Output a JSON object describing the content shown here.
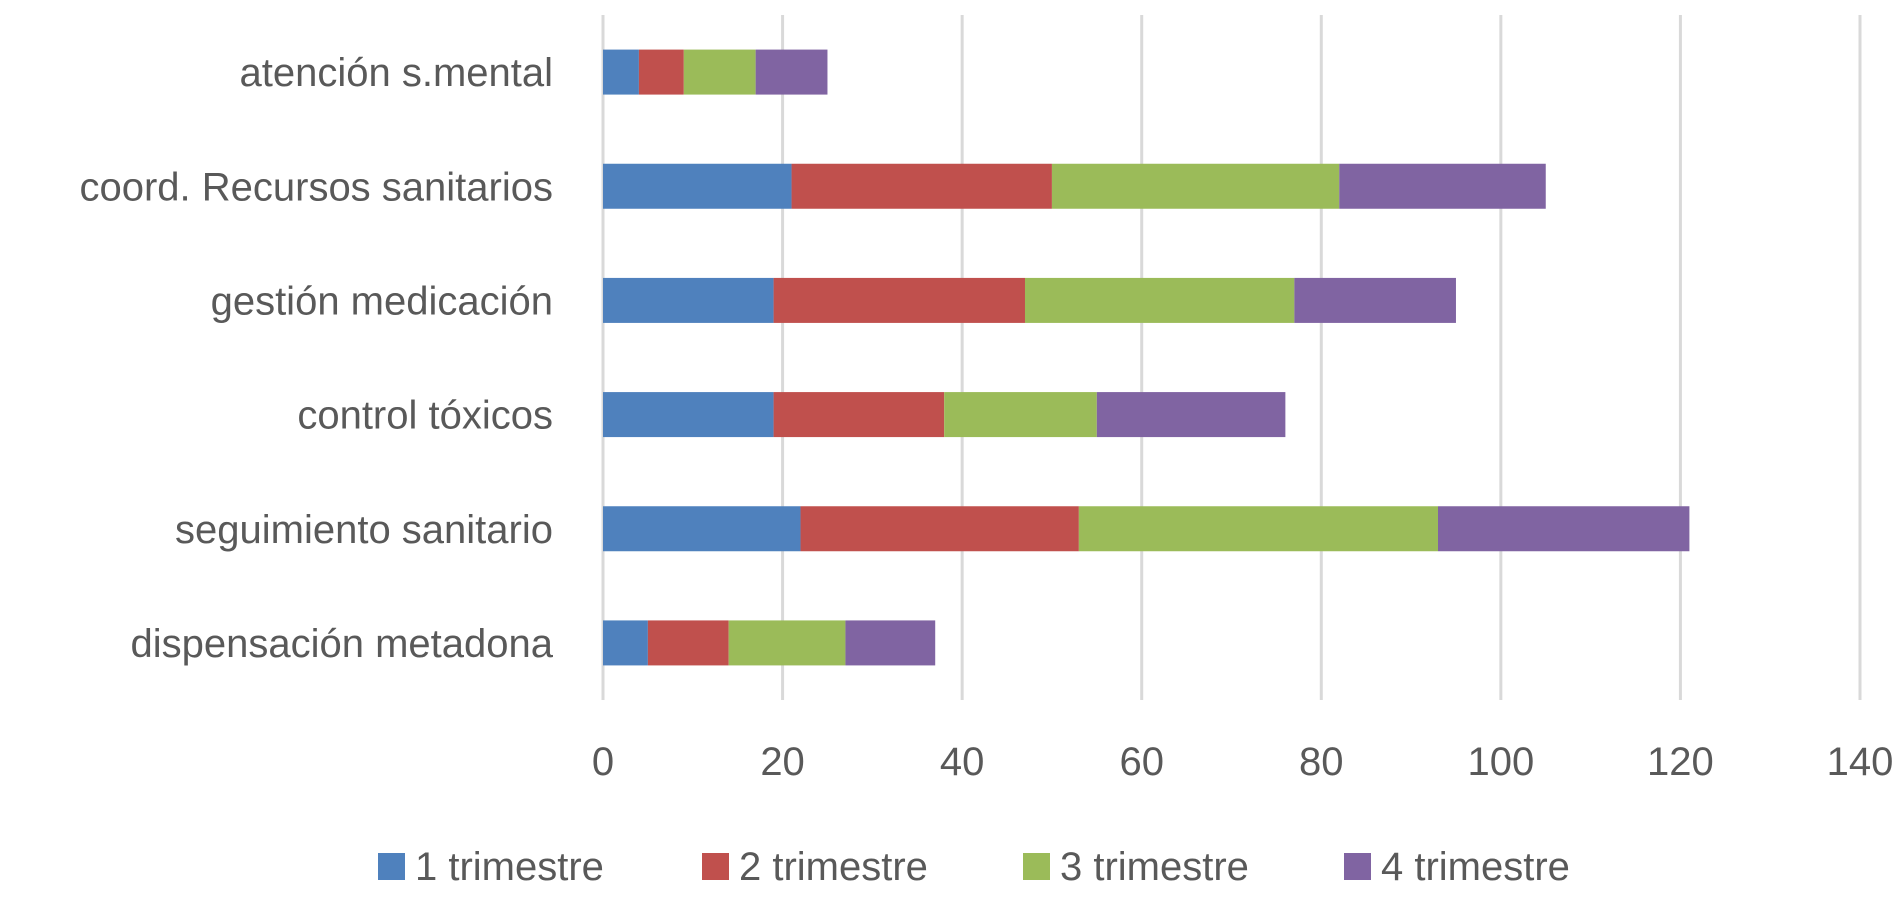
{
  "chart_data": {
    "type": "bar",
    "orientation": "horizontal",
    "stacked": true,
    "title": "",
    "xlabel": "",
    "ylabel": "",
    "categories": [
      "dispensación metadona",
      "seguimiento sanitario",
      "control tóxicos",
      "gestión medicación",
      "coord. Recursos sanitarios",
      "atención s.mental"
    ],
    "series": [
      {
        "name": "1 trimestre",
        "color": "#4f81bd",
        "values": [
          5,
          22,
          19,
          19,
          21,
          4
        ]
      },
      {
        "name": "2 trimestre",
        "color": "#c0504d",
        "values": [
          9,
          31,
          19,
          28,
          29,
          5
        ]
      },
      {
        "name": "3 trimestre",
        "color": "#9bbb59",
        "values": [
          13,
          40,
          17,
          30,
          32,
          8
        ]
      },
      {
        "name": "4 trimestre",
        "color": "#8064a2",
        "values": [
          10,
          28,
          21,
          18,
          23,
          8
        ]
      }
    ],
    "xlim": [
      0,
      140
    ],
    "xticks": [
      "0",
      "20",
      "40",
      "60",
      "80",
      "100",
      "120",
      "140"
    ],
    "grid": true,
    "legend": "bottom"
  }
}
